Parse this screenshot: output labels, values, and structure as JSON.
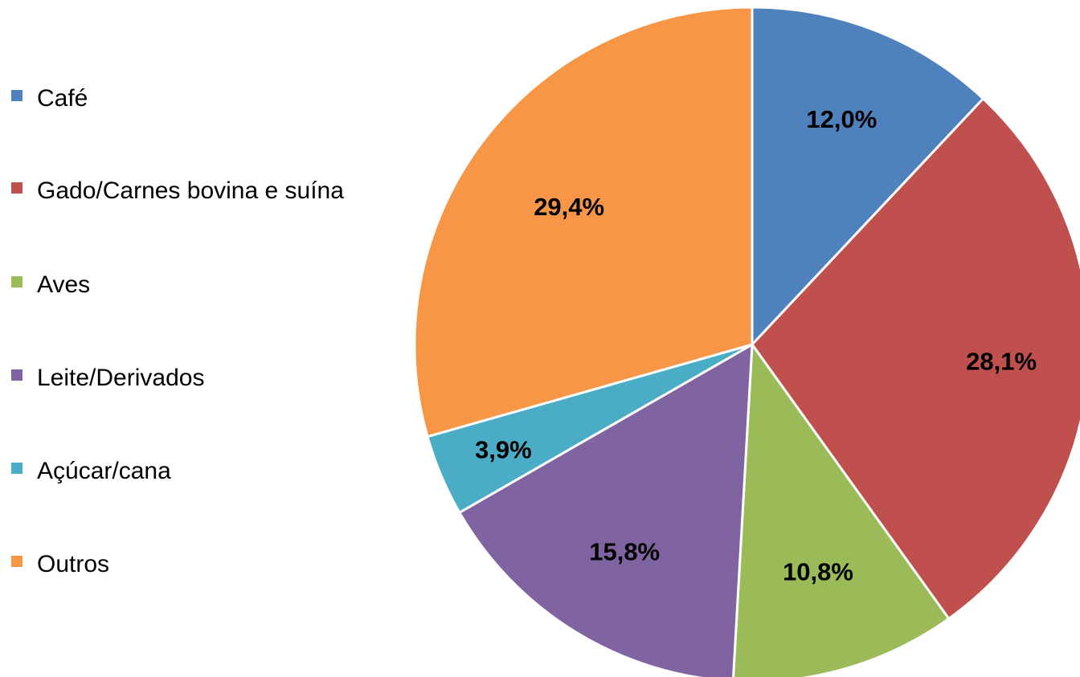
{
  "chart_data": {
    "type": "pie",
    "title": "",
    "slices": [
      {
        "name": "Café",
        "value": 12.0,
        "label": "12,0%",
        "color": "#4F81BD"
      },
      {
        "name": "Gado/Carnes bovina e suína",
        "value": 28.1,
        "label": "28,1%",
        "color": "#C0504D"
      },
      {
        "name": "Aves",
        "value": 10.8,
        "label": "10,8%",
        "color": "#9BBB59"
      },
      {
        "name": "Leite/Derivados",
        "value": 15.8,
        "label": "15,8%",
        "color": "#8064A2"
      },
      {
        "name": "Açúcar/cana",
        "value": 3.9,
        "label": "3,9%",
        "color": "#4BACC6"
      },
      {
        "name": "Outros",
        "value": 29.4,
        "label": "29,4%",
        "color": "#F79646"
      }
    ],
    "start_angle": "12 o'clock",
    "direction": "clockwise",
    "legend_position": "left"
  }
}
